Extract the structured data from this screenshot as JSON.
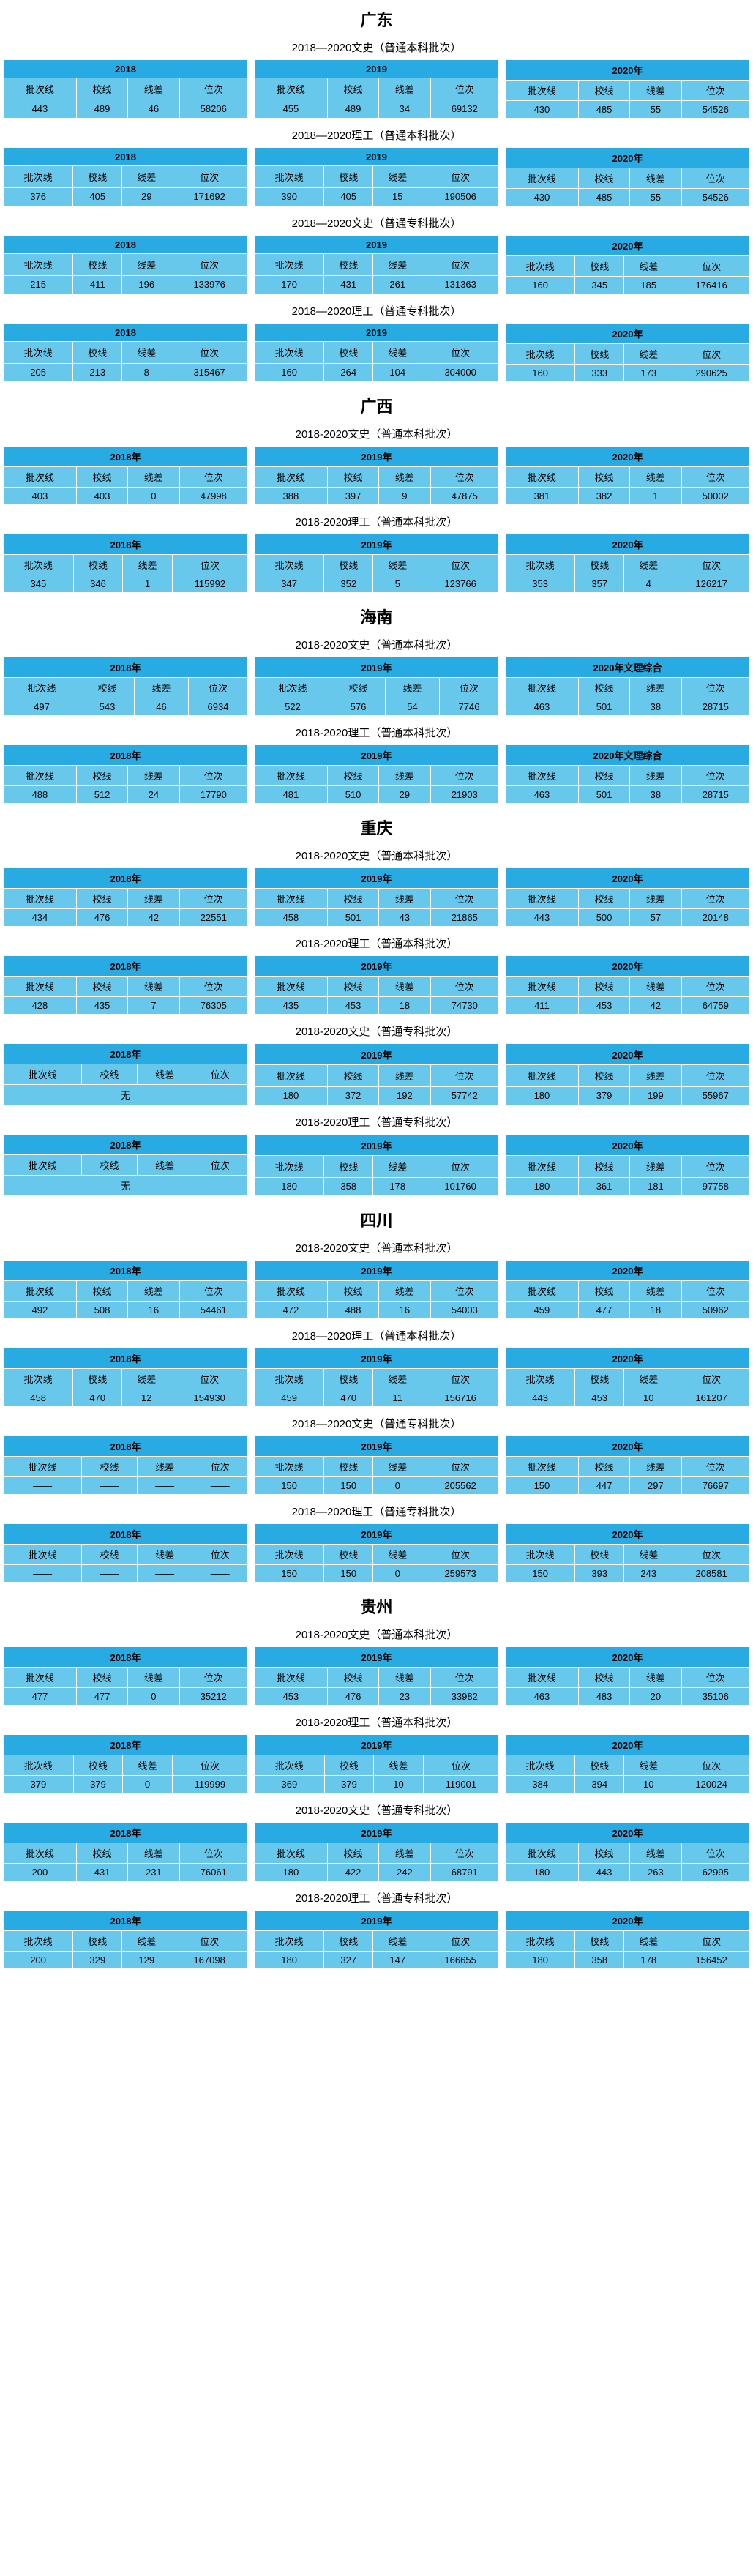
{
  "colors": {
    "header_bg": "#28abe2",
    "cell_bg": "#67c8ec",
    "border": "#ffffff",
    "text": "#000000",
    "page_bg": "#ffffff"
  },
  "fonts": {
    "province_title_size": 22,
    "section_title_size": 15,
    "cell_size": 13
  },
  "col_labels": [
    "批次线",
    "校线",
    "线差",
    "位次"
  ],
  "provinces": [
    {
      "name": "广东",
      "sections": [
        {
          "title": "2018—2020文史（普通本科批次）",
          "years": [
            {
              "label": "2018",
              "rows": [
                [
                  "443",
                  "489",
                  "46",
                  "58206"
                ]
              ]
            },
            {
              "label": "2019",
              "rows": [
                [
                  "455",
                  "489",
                  "34",
                  "69132"
                ]
              ]
            },
            {
              "label": "2020年",
              "rows": [
                [
                  "430",
                  "485",
                  "55",
                  "54526"
                ]
              ]
            }
          ]
        },
        {
          "title": "2018—2020理工（普通本科批次）",
          "years": [
            {
              "label": "2018",
              "rows": [
                [
                  "376",
                  "405",
                  "29",
                  "171692"
                ]
              ]
            },
            {
              "label": "2019",
              "rows": [
                [
                  "390",
                  "405",
                  "15",
                  "190506"
                ]
              ]
            },
            {
              "label": "2020年",
              "rows": [
                [
                  "430",
                  "485",
                  "55",
                  "54526"
                ]
              ]
            }
          ]
        },
        {
          "title": "2018—2020文史（普通专科批次）",
          "years": [
            {
              "label": "2018",
              "rows": [
                [
                  "215",
                  "411",
                  "196",
                  "133976"
                ]
              ]
            },
            {
              "label": "2019",
              "rows": [
                [
                  "170",
                  "431",
                  "261",
                  "131363"
                ]
              ]
            },
            {
              "label": "2020年",
              "rows": [
                [
                  "160",
                  "345",
                  "185",
                  "176416"
                ]
              ]
            }
          ]
        },
        {
          "title": "2018—2020理工（普通专科批次）",
          "years": [
            {
              "label": "2018",
              "rows": [
                [
                  "205",
                  "213",
                  "8",
                  "315467"
                ]
              ]
            },
            {
              "label": "2019",
              "rows": [
                [
                  "160",
                  "264",
                  "104",
                  "304000"
                ]
              ]
            },
            {
              "label": "2020年",
              "rows": [
                [
                  "160",
                  "333",
                  "173",
                  "290625"
                ]
              ]
            }
          ]
        }
      ]
    },
    {
      "name": "广西",
      "sections": [
        {
          "title": "2018-2020文史（普通本科批次）",
          "years": [
            {
              "label": "2018年",
              "rows": [
                [
                  "403",
                  "403",
                  "0",
                  "47998"
                ]
              ]
            },
            {
              "label": "2019年",
              "rows": [
                [
                  "388",
                  "397",
                  "9",
                  "47875"
                ]
              ]
            },
            {
              "label": "2020年",
              "rows": [
                [
                  "381",
                  "382",
                  "1",
                  "50002"
                ]
              ]
            }
          ]
        },
        {
          "title": "2018-2020理工（普通本科批次）",
          "years": [
            {
              "label": "2018年",
              "rows": [
                [
                  "345",
                  "346",
                  "1",
                  "115992"
                ]
              ]
            },
            {
              "label": "2019年",
              "rows": [
                [
                  "347",
                  "352",
                  "5",
                  "123766"
                ]
              ]
            },
            {
              "label": "2020年",
              "rows": [
                [
                  "353",
                  "357",
                  "4",
                  "126217"
                ]
              ]
            }
          ]
        }
      ]
    },
    {
      "name": "海南",
      "sections": [
        {
          "title": "2018-2020文史（普通本科批次）",
          "years": [
            {
              "label": "2018年",
              "rows": [
                [
                  "497",
                  "543",
                  "46",
                  "6934"
                ]
              ]
            },
            {
              "label": "2019年",
              "rows": [
                [
                  "522",
                  "576",
                  "54",
                  "7746"
                ]
              ]
            },
            {
              "label": "2020年文理综合",
              "rows": [
                [
                  "463",
                  "501",
                  "38",
                  "28715"
                ]
              ]
            }
          ]
        },
        {
          "title": "2018-2020理工（普通本科批次）",
          "years": [
            {
              "label": "2018年",
              "rows": [
                [
                  "488",
                  "512",
                  "24",
                  "17790"
                ]
              ]
            },
            {
              "label": "2019年",
              "rows": [
                [
                  "481",
                  "510",
                  "29",
                  "21903"
                ]
              ]
            },
            {
              "label": "2020年文理综合",
              "rows": [
                [
                  "463",
                  "501",
                  "38",
                  "28715"
                ]
              ]
            }
          ]
        }
      ]
    },
    {
      "name": "重庆",
      "sections": [
        {
          "title": "2018-2020文史（普通本科批次）",
          "years": [
            {
              "label": "2018年",
              "rows": [
                [
                  "434",
                  "476",
                  "42",
                  "22551"
                ]
              ]
            },
            {
              "label": "2019年",
              "rows": [
                [
                  "458",
                  "501",
                  "43",
                  "21865"
                ]
              ]
            },
            {
              "label": "2020年",
              "rows": [
                [
                  "443",
                  "500",
                  "57",
                  "20148"
                ]
              ]
            }
          ]
        },
        {
          "title": "2018-2020理工（普通本科批次）",
          "years": [
            {
              "label": "2018年",
              "rows": [
                [
                  "428",
                  "435",
                  "7",
                  "76305"
                ]
              ]
            },
            {
              "label": "2019年",
              "rows": [
                [
                  "435",
                  "453",
                  "18",
                  "74730"
                ]
              ]
            },
            {
              "label": "2020年",
              "rows": [
                [
                  "411",
                  "453",
                  "42",
                  "64759"
                ]
              ]
            }
          ]
        },
        {
          "title": "2018-2020文史（普通专科批次）",
          "years": [
            {
              "label": "2018年",
              "rows": [
                [
                  "无"
                ]
              ],
              "merged": true
            },
            {
              "label": "2019年",
              "rows": [
                [
                  "180",
                  "372",
                  "192",
                  "57742"
                ]
              ]
            },
            {
              "label": "2020年",
              "rows": [
                [
                  "180",
                  "379",
                  "199",
                  "55967"
                ]
              ]
            }
          ]
        },
        {
          "title": "2018-2020理工（普通专科批次）",
          "years": [
            {
              "label": "2018年",
              "rows": [
                [
                  "无"
                ]
              ],
              "merged": true
            },
            {
              "label": "2019年",
              "rows": [
                [
                  "180",
                  "358",
                  "178",
                  "101760"
                ]
              ]
            },
            {
              "label": "2020年",
              "rows": [
                [
                  "180",
                  "361",
                  "181",
                  "97758"
                ]
              ]
            }
          ]
        }
      ]
    },
    {
      "name": "四川",
      "sections": [
        {
          "title": "2018-2020文史（普通本科批次）",
          "years": [
            {
              "label": "2018年",
              "rows": [
                [
                  "492",
                  "508",
                  "16",
                  "54461"
                ]
              ]
            },
            {
              "label": "2019年",
              "rows": [
                [
                  "472",
                  "488",
                  "16",
                  "54003"
                ]
              ]
            },
            {
              "label": "2020年",
              "rows": [
                [
                  "459",
                  "477",
                  "18",
                  "50962"
                ]
              ]
            }
          ]
        },
        {
          "title": "2018—2020理工（普通本科批次）",
          "years": [
            {
              "label": "2018年",
              "rows": [
                [
                  "458",
                  "470",
                  "12",
                  "154930"
                ]
              ]
            },
            {
              "label": "2019年",
              "rows": [
                [
                  "459",
                  "470",
                  "11",
                  "156716"
                ]
              ]
            },
            {
              "label": "2020年",
              "rows": [
                [
                  "443",
                  "453",
                  "10",
                  "161207"
                ]
              ]
            }
          ]
        },
        {
          "title": "2018—2020文史（普通专科批次）",
          "years": [
            {
              "label": "2018年",
              "rows": [
                [
                  "——",
                  "——",
                  "——",
                  "——"
                ]
              ]
            },
            {
              "label": "2019年",
              "rows": [
                [
                  "150",
                  "150",
                  "0",
                  "205562"
                ]
              ]
            },
            {
              "label": "2020年",
              "rows": [
                [
                  "150",
                  "447",
                  "297",
                  "76697"
                ]
              ]
            }
          ]
        },
        {
          "title": "2018—2020理工（普通专科批次）",
          "years": [
            {
              "label": "2018年",
              "rows": [
                [
                  "——",
                  "——",
                  "——",
                  "——"
                ]
              ]
            },
            {
              "label": "2019年",
              "rows": [
                [
                  "150",
                  "150",
                  "0",
                  "259573"
                ]
              ]
            },
            {
              "label": "2020年",
              "rows": [
                [
                  "150",
                  "393",
                  "243",
                  "208581"
                ]
              ]
            }
          ]
        }
      ]
    },
    {
      "name": "贵州",
      "sections": [
        {
          "title": "2018-2020文史（普通本科批次）",
          "years": [
            {
              "label": "2018年",
              "rows": [
                [
                  "477",
                  "477",
                  "0",
                  "35212"
                ]
              ]
            },
            {
              "label": "2019年",
              "rows": [
                [
                  "453",
                  "476",
                  "23",
                  "33982"
                ]
              ]
            },
            {
              "label": "2020年",
              "rows": [
                [
                  "463",
                  "483",
                  "20",
                  "35106"
                ]
              ]
            }
          ]
        },
        {
          "title": "2018-2020理工（普通本科批次）",
          "years": [
            {
              "label": "2018年",
              "rows": [
                [
                  "379",
                  "379",
                  "0",
                  "119999"
                ]
              ]
            },
            {
              "label": "2019年",
              "rows": [
                [
                  "369",
                  "379",
                  "10",
                  "119001"
                ]
              ]
            },
            {
              "label": "2020年",
              "rows": [
                [
                  "384",
                  "394",
                  "10",
                  "120024"
                ]
              ]
            }
          ]
        },
        {
          "title": "2018-2020文史（普通专科批次）",
          "years": [
            {
              "label": "2018年",
              "rows": [
                [
                  "200",
                  "431",
                  "231",
                  "76061"
                ]
              ]
            },
            {
              "label": "2019年",
              "rows": [
                [
                  "180",
                  "422",
                  "242",
                  "68791"
                ]
              ]
            },
            {
              "label": "2020年",
              "rows": [
                [
                  "180",
                  "443",
                  "263",
                  "62995"
                ]
              ]
            }
          ]
        },
        {
          "title": "2018-2020理工（普通专科批次）",
          "years": [
            {
              "label": "2018年",
              "rows": [
                [
                  "200",
                  "329",
                  "129",
                  "167098"
                ]
              ]
            },
            {
              "label": "2019年",
              "rows": [
                [
                  "180",
                  "327",
                  "147",
                  "166655"
                ]
              ]
            },
            {
              "label": "2020年",
              "rows": [
                [
                  "180",
                  "358",
                  "178",
                  "156452"
                ]
              ]
            }
          ]
        }
      ]
    }
  ]
}
